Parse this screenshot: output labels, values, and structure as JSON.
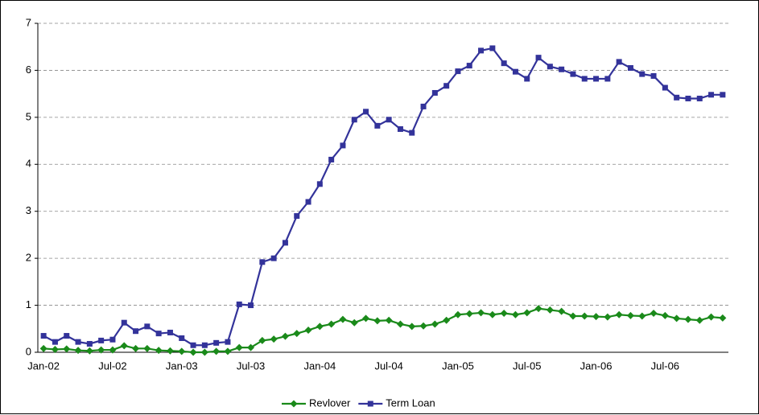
{
  "chart_data": {
    "type": "line",
    "categories": [
      "Jan-02",
      null,
      null,
      null,
      null,
      null,
      "Jul-02",
      null,
      null,
      null,
      null,
      null,
      "Jan-03",
      null,
      null,
      null,
      null,
      null,
      "Jul-03",
      null,
      null,
      null,
      null,
      null,
      "Jan-04",
      null,
      null,
      null,
      null,
      null,
      "Jul-04",
      null,
      null,
      null,
      null,
      null,
      "Jan-05",
      null,
      null,
      null,
      null,
      null,
      "Jul-05",
      null,
      null,
      null,
      null,
      null,
      "Jan-06",
      null,
      null,
      null,
      null,
      null,
      "Jul-06",
      null,
      null,
      null,
      null,
      null
    ],
    "series": [
      {
        "name": "Revlover",
        "color": "#1a8a1a",
        "marker": "diamond",
        "values": [
          0.08,
          0.06,
          0.07,
          0.04,
          0.03,
          0.05,
          0.05,
          0.14,
          0.08,
          0.08,
          0.04,
          0.03,
          0.02,
          0.0,
          0.0,
          0.02,
          0.02,
          0.1,
          0.1,
          0.25,
          0.28,
          0.34,
          0.4,
          0.47,
          0.55,
          0.6,
          0.7,
          0.63,
          0.72,
          0.67,
          0.68,
          0.6,
          0.55,
          0.56,
          0.6,
          0.68,
          0.8,
          0.82,
          0.84,
          0.8,
          0.83,
          0.8,
          0.84,
          0.93,
          0.9,
          0.87,
          0.77,
          0.77,
          0.76,
          0.75,
          0.8,
          0.78,
          0.77,
          0.83,
          0.78,
          0.72,
          0.7,
          0.68,
          0.75,
          0.73
        ]
      },
      {
        "name": "Term Loan",
        "color": "#33339a",
        "marker": "square",
        "values": [
          0.35,
          0.22,
          0.35,
          0.22,
          0.18,
          0.25,
          0.27,
          0.63,
          0.45,
          0.55,
          0.4,
          0.42,
          0.3,
          0.15,
          0.15,
          0.2,
          0.22,
          1.02,
          1.0,
          1.92,
          2.0,
          2.33,
          2.9,
          3.2,
          3.58,
          4.1,
          4.4,
          4.95,
          5.12,
          4.82,
          4.95,
          4.75,
          4.67,
          5.23,
          5.52,
          5.67,
          5.98,
          6.1,
          6.42,
          6.47,
          6.15,
          5.97,
          5.82,
          6.27,
          6.08,
          6.02,
          5.92,
          5.82,
          5.82,
          5.82,
          6.18,
          6.05,
          5.92,
          5.88,
          5.63,
          5.42,
          5.4,
          5.4,
          5.48,
          5.48
        ]
      }
    ],
    "ylim": [
      0,
      7
    ],
    "yticks": [
      0,
      1,
      2,
      3,
      4,
      5,
      6,
      7
    ],
    "grid": true,
    "legend": "bottom"
  }
}
